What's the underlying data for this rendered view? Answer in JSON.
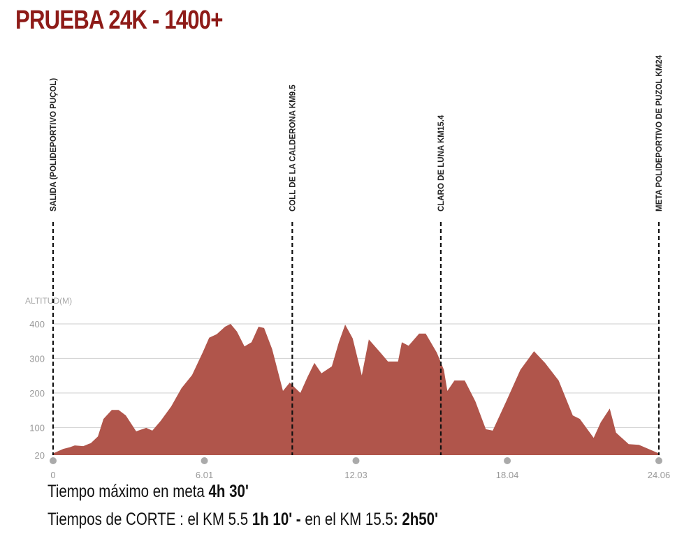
{
  "title": "PRUEBA 24K - 1400+",
  "chart_data": {
    "type": "area",
    "title": "PRUEBA 24K - 1400+",
    "ylabel": "ALTITUD(M)",
    "xlabel": "",
    "xlim": [
      0,
      24.06
    ],
    "ylim": [
      20,
      400
    ],
    "yticks": [
      20,
      100,
      200,
      300,
      400
    ],
    "xticks": [
      "0",
      "6.01",
      "12.03",
      "18.04",
      "24.06"
    ],
    "xtick_values": [
      0,
      6.01,
      12.03,
      18.04,
      24.06
    ],
    "fill_color": "#b0554b",
    "grid": true,
    "x": [
      0,
      0.4,
      0.67,
      0.86,
      1.2,
      1.5,
      1.78,
      2.0,
      2.33,
      2.6,
      2.89,
      3.3,
      3.7,
      3.94,
      4.27,
      4.69,
      5.1,
      5.52,
      5.94,
      6.2,
      6.5,
      6.83,
      7.05,
      7.3,
      7.6,
      7.88,
      8.16,
      8.38,
      8.7,
      9.13,
      9.4,
      9.82,
      10.1,
      10.38,
      10.66,
      11.07,
      11.35,
      11.6,
      11.9,
      12.26,
      12.54,
      13.0,
      13.3,
      13.7,
      13.85,
      14.12,
      14.54,
      14.8,
      15.24,
      15.52,
      15.66,
      15.94,
      16.35,
      16.77,
      17.19,
      17.46,
      18.0,
      18.56,
      19.1,
      19.54,
      20.08,
      20.64,
      20.92,
      21.47,
      21.75,
      22.11,
      22.36,
      22.86,
      23.27,
      24.06
    ],
    "y": [
      25,
      38,
      43,
      48,
      46,
      55,
      74,
      125,
      151,
      151,
      135,
      89,
      99,
      91,
      119,
      161,
      214,
      252,
      317,
      360,
      370,
      392,
      400,
      378,
      335,
      347,
      392,
      388,
      327,
      206,
      230,
      200,
      246,
      287,
      257,
      277,
      347,
      398,
      358,
      251,
      355,
      317,
      291,
      291,
      347,
      337,
      372,
      372,
      317,
      267,
      206,
      236,
      236,
      176,
      95,
      91,
      176,
      267,
      321,
      287,
      236,
      135,
      125,
      70,
      115,
      155,
      85,
      52,
      50,
      25
    ],
    "markers": [
      {
        "km": 0,
        "label": "SALIDA (POLIDEPORTIVO PUÇOL)"
      },
      {
        "km": 9.5,
        "label": "COLL DE LA CALDERONA KM9.5"
      },
      {
        "km": 15.4,
        "label": "CLARO DE LUNA KM15.4"
      },
      {
        "km": 24.06,
        "label": "META POLIDEPORTIVO DE PUZOL KM24"
      }
    ]
  },
  "footer": {
    "line1_text": "Tiempo máximo en meta ",
    "line1_bold": "4h 30'",
    "line2_text": "Tiempos de CORTE : el KM 5.5 ",
    "line2_bold1": "1h 10' -",
    "line2_text2": " en el KM 15.5",
    "line2_bold2": ": 2h50'"
  }
}
